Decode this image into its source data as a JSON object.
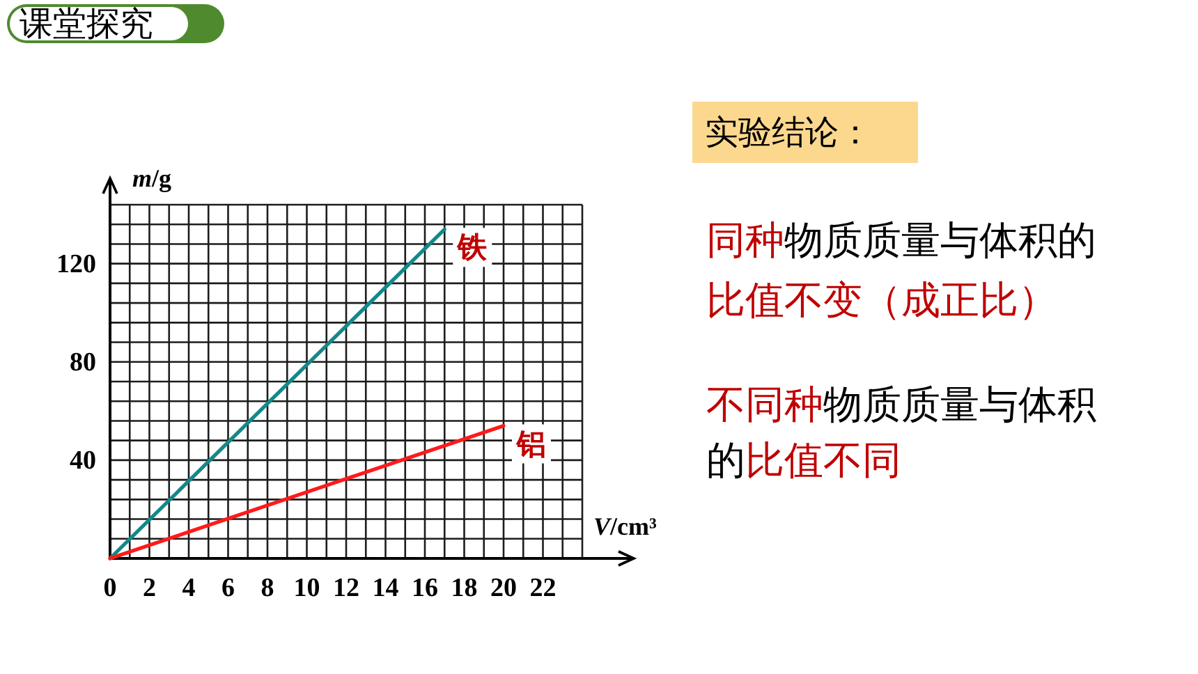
{
  "chart_data": {
    "type": "line",
    "xlabel": "*V*/cm³",
    "ylabel": "*m*/g",
    "series": [
      {
        "name": "铁",
        "color": "#13888a",
        "x": [
          0,
          17
        ],
        "values": [
          0,
          134
        ]
      },
      {
        "name": "铝",
        "color": "#ff1a1a",
        "x": [
          0,
          20
        ],
        "values": [
          0,
          54
        ]
      }
    ],
    "xlim": [
      0,
      24
    ],
    "ylim": [
      0,
      144
    ],
    "xticks": [
      0,
      {
        "value": 1,
        "label": null
      },
      2,
      {
        "value": 3,
        "label": null
      },
      4,
      {
        "value": 5,
        "label": null
      },
      6,
      {
        "value": 7,
        "label": null
      },
      8,
      {
        "value": 9,
        "label": null
      },
      10,
      {
        "value": 11,
        "label": null
      },
      12,
      {
        "value": 13,
        "label": null
      },
      14,
      {
        "value": 15,
        "label": null
      },
      16,
      {
        "value": 17,
        "label": null
      },
      18,
      {
        "value": 19,
        "label": null
      },
      20,
      {
        "value": 21,
        "label": null
      },
      22,
      {
        "value": 23,
        "label": null
      },
      {
        "value": 24,
        "label": null
      }
    ],
    "yticks": [
      {
        "value": 0,
        "label": null
      },
      {
        "value": 8,
        "label": null
      },
      {
        "value": 16,
        "label": null
      },
      {
        "value": 24,
        "label": null
      },
      {
        "value": 32,
        "label": null
      },
      40,
      {
        "value": 48,
        "label": null
      },
      {
        "value": 56,
        "label": null
      },
      {
        "value": 64,
        "label": null
      },
      {
        "value": 72,
        "label": null
      },
      80,
      {
        "value": 88,
        "label": null
      },
      {
        "value": 96,
        "label": null
      },
      {
        "value": 104,
        "label": null
      },
      {
        "value": 112,
        "label": null
      },
      120,
      {
        "value": 128,
        "label": null
      },
      {
        "value": 136,
        "label": null
      },
      {
        "value": 144,
        "label": null
      }
    ],
    "grid": true,
    "annotations": [
      "课堂探究",
      "实验结论：",
      "同种",
      "物质质量与体积的",
      "比值不变（成正比）",
      "不同种",
      "物质质量与体积",
      "的",
      "比值不同"
    ]
  }
}
